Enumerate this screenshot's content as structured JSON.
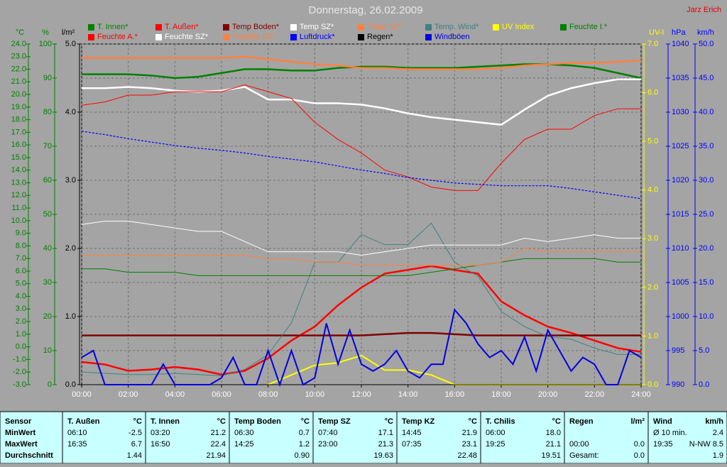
{
  "chart_data": {
    "type": "line",
    "title": "Donnerstag, 26.02.2009",
    "author": "Jarz Erich",
    "x": [
      0,
      1,
      2,
      3,
      4,
      5,
      6,
      7,
      8,
      9,
      10,
      11,
      12,
      13,
      14,
      15,
      16,
      17,
      18,
      19,
      20,
      21,
      22,
      23,
      24
    ],
    "xlim": [
      0,
      24
    ],
    "xticks": [
      {
        "value": 0,
        "label": "00:00"
      },
      {
        "value": 2,
        "label": "02:00"
      },
      {
        "value": 4,
        "label": "04:00"
      },
      {
        "value": 6,
        "label": "06:00"
      },
      {
        "value": 8,
        "label": "08:00"
      },
      {
        "value": 10,
        "label": "10:00"
      },
      {
        "value": 12,
        "label": "12:00"
      },
      {
        "value": 14,
        "label": "14:00"
      },
      {
        "value": 16,
        "label": "16:00"
      },
      {
        "value": 18,
        "label": "18:00"
      },
      {
        "value": 20,
        "label": "20:00"
      },
      {
        "value": 22,
        "label": "22:00"
      },
      {
        "value": 24,
        "label": "24:00"
      }
    ],
    "grid": true,
    "axes": [
      {
        "label": "°C",
        "color": "#008000",
        "lim": [
          -3,
          24
        ],
        "ticks": [
          {
            "value": 24,
            "label": "24.0"
          },
          {
            "value": 23,
            "label": "23.0"
          },
          {
            "value": 22,
            "label": "22.0"
          },
          {
            "value": 21,
            "label": "21.0"
          },
          {
            "value": 20,
            "label": "20.0"
          },
          {
            "value": 19,
            "label": "19.0"
          },
          {
            "value": 18,
            "label": "18.0"
          },
          {
            "value": 17,
            "label": "17.0"
          },
          {
            "value": 16,
            "label": "16.0"
          },
          {
            "value": 15,
            "label": "15.0"
          },
          {
            "value": 14,
            "label": "14.0"
          },
          {
            "value": 13,
            "label": "13.0"
          },
          {
            "value": 12,
            "label": "12.0"
          },
          {
            "value": 11,
            "label": "11.0"
          },
          {
            "value": 10,
            "label": "10.0"
          },
          {
            "value": 9,
            "label": "9.0"
          },
          {
            "value": 8,
            "label": "8.0"
          },
          {
            "value": 7,
            "label": "7.0"
          },
          {
            "value": 6,
            "label": "6.0"
          },
          {
            "value": 5,
            "label": "5.0"
          },
          {
            "value": 4,
            "label": "4.0"
          },
          {
            "value": 3,
            "label": "3.0"
          },
          {
            "value": 2,
            "label": "2.0"
          },
          {
            "value": 1,
            "label": "1.0"
          },
          {
            "value": 0,
            "label": "0.0"
          },
          {
            "value": -1,
            "label": "-1.0"
          },
          {
            "value": -2,
            "label": "-2.0"
          },
          {
            "value": -3,
            "label": "-3.0"
          }
        ]
      },
      {
        "label": "%",
        "color": "#008000",
        "lim": [
          0,
          100
        ],
        "ticks": [
          100,
          90,
          80,
          70,
          60,
          50,
          40,
          30,
          20,
          10,
          0
        ]
      },
      {
        "label": "l/m²",
        "color": "#000000",
        "lim": [
          0,
          5
        ],
        "ticks": [
          {
            "value": 5,
            "label": "5.0"
          },
          {
            "value": 4,
            "label": "4.0"
          },
          {
            "value": 3,
            "label": "3.0"
          },
          {
            "value": 2,
            "label": "2.0"
          },
          {
            "value": 1,
            "label": "1.0"
          },
          {
            "value": 0,
            "label": "0.0"
          }
        ]
      },
      {
        "label": "UV-I",
        "color": "#ffff00",
        "lim": [
          0,
          7
        ],
        "ticks": [
          {
            "value": 7,
            "label": "7.0"
          },
          {
            "value": 6,
            "label": "6.0"
          },
          {
            "value": 5,
            "label": "5.0"
          },
          {
            "value": 4,
            "label": "4.0"
          },
          {
            "value": 3,
            "label": "3.0"
          },
          {
            "value": 2,
            "label": "2.0"
          },
          {
            "value": 1,
            "label": "1.0"
          },
          {
            "value": 0,
            "label": "0.0"
          }
        ]
      },
      {
        "label": "hPa",
        "color": "#0000ff",
        "lim": [
          990,
          1040
        ],
        "ticks": [
          1040,
          1035,
          1030,
          1025,
          1020,
          1015,
          1010,
          1005,
          1000,
          995,
          990
        ]
      },
      {
        "label": "km/h",
        "color": "#0000ff",
        "lim": [
          0,
          50
        ],
        "ticks": [
          {
            "value": 50,
            "label": "50.0"
          },
          {
            "value": 45,
            "label": "45.0"
          },
          {
            "value": 40,
            "label": "40.0"
          },
          {
            "value": 35,
            "label": "35.0"
          },
          {
            "value": 30,
            "label": "30.0"
          },
          {
            "value": 25,
            "label": "25.0"
          },
          {
            "value": 20,
            "label": "20.0"
          },
          {
            "value": 15,
            "label": "15.0"
          },
          {
            "value": 10,
            "label": "10.0"
          },
          {
            "value": 5,
            "label": "5.0"
          },
          {
            "value": 0,
            "label": "0.0"
          }
        ]
      }
    ],
    "series": [
      {
        "name": "T. Innen*",
        "color": "#008000",
        "axis": 0,
        "width": 2.5,
        "values": [
          21.6,
          21.6,
          21.6,
          21.5,
          21.3,
          21.4,
          21.7,
          22.0,
          22.0,
          21.9,
          21.9,
          22.1,
          22.2,
          22.2,
          22.1,
          22.1,
          22.1,
          22.2,
          22.3,
          22.4,
          22.4,
          22.3,
          22.1,
          21.7,
          21.3
        ]
      },
      {
        "name": "T. Außen*",
        "color": "#ff0000",
        "axis": 0,
        "width": 2.5,
        "values": [
          -1.2,
          -1.4,
          -1.9,
          -1.8,
          -1.6,
          -1.8,
          -2.2,
          -1.9,
          -0.9,
          0.5,
          1.6,
          3.3,
          4.7,
          5.8,
          6.1,
          6.4,
          6.1,
          5.8,
          3.6,
          2.5,
          1.6,
          1.1,
          0.5,
          -0.1,
          -0.4
        ]
      },
      {
        "name": "Temp Boden*",
        "color": "#800000",
        "axis": 0,
        "width": 2.5,
        "values": [
          0.9,
          0.9,
          0.9,
          0.9,
          0.9,
          0.9,
          0.9,
          0.9,
          0.9,
          0.9,
          0.9,
          0.9,
          0.9,
          1.0,
          1.1,
          1.1,
          1.0,
          0.9,
          0.9,
          0.9,
          0.9,
          0.9,
          0.9,
          0.9,
          0.9
        ]
      },
      {
        "name": "Temp SZ*",
        "color": "#ffffff",
        "axis": 0,
        "width": 2.5,
        "values": [
          20.5,
          20.5,
          20.6,
          20.5,
          20.3,
          20.2,
          20.3,
          20.6,
          19.6,
          19.6,
          19.3,
          19.3,
          19.2,
          18.9,
          18.5,
          18.2,
          18.0,
          17.8,
          17.6,
          18.8,
          19.9,
          20.5,
          20.9,
          21.2,
          21.2
        ]
      },
      {
        "name": "Temp KZ*",
        "color": "#ff8040",
        "axis": 0,
        "width": 2.5,
        "values": [
          22.9,
          22.9,
          22.9,
          22.9,
          22.9,
          22.9,
          22.9,
          23.0,
          22.8,
          22.6,
          22.4,
          22.3,
          22.1,
          22.1,
          22.0,
          22.0,
          22.0,
          22.0,
          22.1,
          22.3,
          22.4,
          22.5,
          22.5,
          22.6,
          22.7
        ]
      },
      {
        "name": "Temp. Wind*",
        "color": "#408080",
        "axis": 0,
        "width": 1,
        "values": [
          -2.0,
          -2.1,
          -2.2,
          -2.2,
          -2.1,
          -2.2,
          -2.3,
          -1.8,
          -0.6,
          1.9,
          6.7,
          6.7,
          8.9,
          8.1,
          8.1,
          9.8,
          6.7,
          5.6,
          2.8,
          1.6,
          0.8,
          0.6,
          -0.1,
          -0.6,
          -0.6
        ]
      },
      {
        "name": "UV Index",
        "color": "#ffff00",
        "axis": 3,
        "width": 2,
        "values": [
          null,
          null,
          null,
          null,
          null,
          null,
          null,
          null,
          0,
          0.2,
          0.4,
          0.45,
          0.6,
          0.3,
          0.3,
          0.2,
          0,
          0,
          0,
          0,
          0,
          0,
          0,
          0,
          0
        ]
      },
      {
        "name": "Feuchte I.*",
        "color": "#008000",
        "axis": 1,
        "width": 1,
        "values": [
          34,
          34,
          33,
          33,
          33,
          32,
          32,
          32,
          32,
          32,
          32,
          32,
          32,
          32,
          32,
          33,
          34,
          35,
          36,
          37,
          37,
          37,
          37,
          36,
          36
        ]
      },
      {
        "name": "Feuchte A.*",
        "color": "#ff0000",
        "axis": 1,
        "width": 1,
        "values": [
          82,
          83,
          85,
          85,
          86,
          86,
          86,
          88,
          86,
          84,
          77,
          72,
          68,
          63,
          61,
          58,
          57,
          57,
          65,
          72,
          75,
          75,
          79,
          81,
          81
        ]
      },
      {
        "name": "Feuchte SZ*",
        "color": "#ffffff",
        "axis": 1,
        "width": 1,
        "values": [
          47,
          48,
          48,
          47,
          46,
          45,
          45,
          42,
          39,
          39,
          39,
          39,
          38,
          39,
          40,
          41,
          41,
          41,
          41,
          43,
          42,
          43,
          44,
          43,
          43
        ]
      },
      {
        "name": "Feuchte KZ*",
        "color": "#ff8040",
        "axis": 1,
        "width": 1,
        "values": [
          38,
          38,
          38,
          38,
          38,
          38,
          38,
          38,
          37,
          37,
          36,
          36,
          35,
          35,
          35,
          35,
          35,
          35,
          36,
          40,
          39,
          39,
          39,
          39,
          39
        ]
      },
      {
        "name": "Luftdruck*",
        "color": "#0000ff",
        "axis": 4,
        "width": 1.2,
        "dashed": true,
        "values": [
          1027.2,
          1026.7,
          1026.1,
          1025.6,
          1025.1,
          1024.7,
          1024.4,
          1024.0,
          1023.5,
          1023.1,
          1022.7,
          1022.1,
          1021.5,
          1021.0,
          1020.4,
          1020.0,
          1019.6,
          1019.4,
          1019.2,
          1019.2,
          1019.2,
          1018.8,
          1018.3,
          1017.8,
          1017.3
        ]
      },
      {
        "name": "Regen*",
        "color": "#000000",
        "axis": 2,
        "width": 1,
        "values": [
          0,
          0,
          0,
          0,
          0,
          0,
          0,
          0,
          0,
          0,
          0,
          0,
          0,
          0,
          0,
          0,
          0,
          0,
          0,
          0,
          0,
          0,
          0,
          0,
          0
        ]
      },
      {
        "name": "Windböen",
        "color": "#0000e0",
        "axis": 5,
        "width": 2,
        "x": [
          0,
          0.5,
          1,
          1.5,
          2,
          2.5,
          3,
          3.5,
          4,
          4.5,
          5,
          5.5,
          6,
          6.5,
          7,
          7.5,
          8,
          8.5,
          9,
          9.5,
          10,
          10.5,
          11,
          11.5,
          12,
          12.5,
          13,
          13.5,
          14,
          14.5,
          15,
          15.5,
          16,
          16.5,
          17,
          17.5,
          18,
          18.5,
          19,
          19.5,
          20,
          20.5,
          21,
          21.5,
          22,
          22.5,
          23,
          23.5,
          24
        ],
        "values": [
          4,
          5,
          0,
          0,
          0,
          0,
          0,
          3,
          0,
          0,
          0,
          0,
          1,
          4,
          0,
          0,
          5,
          0,
          5,
          0,
          1,
          9,
          3,
          8,
          3,
          2,
          3,
          5,
          2,
          1,
          3,
          3,
          11,
          9,
          6,
          4,
          5,
          3,
          7,
          2,
          8,
          5,
          2,
          4,
          3,
          0,
          0,
          5,
          4
        ]
      }
    ]
  },
  "table": {
    "header": "Sensor",
    "columns": [
      {
        "name": "T. Außen",
        "unit": "°C"
      },
      {
        "name": "T. Innen",
        "unit": "°C"
      },
      {
        "name": "Temp Boden",
        "unit": "°C"
      },
      {
        "name": "Temp SZ",
        "unit": "°C"
      },
      {
        "name": "Temp KZ",
        "unit": "°C"
      },
      {
        "name": "T. Chilis",
        "unit": "°C"
      },
      {
        "name": "Regen",
        "unit": "l/m²"
      },
      {
        "name": "Wind",
        "unit": "km/h"
      }
    ],
    "rows": [
      {
        "label": "MinWert",
        "cells": [
          {
            "time": "06:10",
            "value": "-2.5"
          },
          {
            "time": "03:20",
            "value": "21.2"
          },
          {
            "time": "06:30",
            "value": "0.7"
          },
          {
            "time": "07:40",
            "value": "17.1"
          },
          {
            "time": "14:45",
            "value": "21.9"
          },
          {
            "time": "06:00",
            "value": "18.0"
          },
          null,
          {
            "time": "Ø 10 min.",
            "value": "2.4"
          }
        ]
      },
      {
        "label": "MaxWert",
        "cells": [
          {
            "time": "16:35",
            "value": "6.7"
          },
          {
            "time": "16:50",
            "value": "22.4"
          },
          {
            "time": "14:25",
            "value": "1.2"
          },
          {
            "time": "23:00",
            "value": "21.3"
          },
          {
            "time": "07:35",
            "value": "23.1"
          },
          {
            "time": "19:25",
            "value": "21.1"
          },
          {
            "time": "00:00",
            "value": "0.0"
          },
          {
            "time": "19:35",
            "value": "N-NW 8.5"
          }
        ]
      },
      {
        "label": "Durchschnitt",
        "cells": [
          {
            "time": null,
            "value": "1.44"
          },
          {
            "time": null,
            "value": "21.94"
          },
          {
            "time": null,
            "value": "0.90"
          },
          {
            "time": null,
            "value": "19.63"
          },
          {
            "time": null,
            "value": "22.48"
          },
          {
            "time": null,
            "value": "19.51"
          },
          {
            "time": "Gesamt:",
            "value": "0.0"
          },
          {
            "time": null,
            "value": "1.9"
          }
        ]
      }
    ]
  }
}
